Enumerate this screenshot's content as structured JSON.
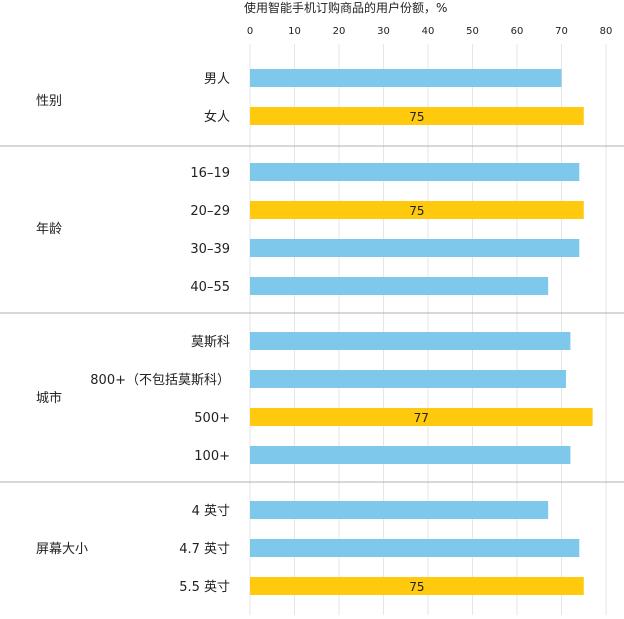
{
  "chart_data": {
    "type": "bar",
    "orientation": "horizontal",
    "title": "使用智能手机订购商品的用户份额，%",
    "xlim": [
      0,
      80
    ],
    "x_ticks": [
      0,
      10,
      20,
      30,
      40,
      50,
      60,
      70,
      80
    ],
    "grid": true,
    "colors": {
      "normal": "#7ec8ec",
      "highlight": "#ffc90e",
      "separator": "#b0b0b0",
      "grid": "#e6e6e6"
    },
    "groups": [
      {
        "name": "性别",
        "categories": [
          {
            "label": "男人",
            "value": 70,
            "highlight": false
          },
          {
            "label": "女人",
            "value": 75,
            "highlight": true,
            "data_label": "75"
          }
        ]
      },
      {
        "name": "年龄",
        "categories": [
          {
            "label": "16–19",
            "value": 74,
            "highlight": false
          },
          {
            "label": "20–29",
            "value": 75,
            "highlight": true,
            "data_label": "75"
          },
          {
            "label": "30–39",
            "value": 74,
            "highlight": false
          },
          {
            "label": "40–55",
            "value": 67,
            "highlight": false
          }
        ]
      },
      {
        "name": "城市",
        "categories": [
          {
            "label": "莫斯科",
            "value": 72,
            "highlight": false
          },
          {
            "label": "800+（不包括莫斯科）",
            "value": 71,
            "highlight": false
          },
          {
            "label": "500+",
            "value": 77,
            "highlight": true,
            "data_label": "77"
          },
          {
            "label": "100+",
            "value": 72,
            "highlight": false
          }
        ]
      },
      {
        "name": "屏幕大小",
        "categories": [
          {
            "label": "4 英寸",
            "value": 67,
            "highlight": false
          },
          {
            "label": "4.7 英寸",
            "value": 74,
            "highlight": false
          },
          {
            "label": "5.5 英寸",
            "value": 75,
            "highlight": true,
            "data_label": "75"
          }
        ]
      }
    ]
  }
}
